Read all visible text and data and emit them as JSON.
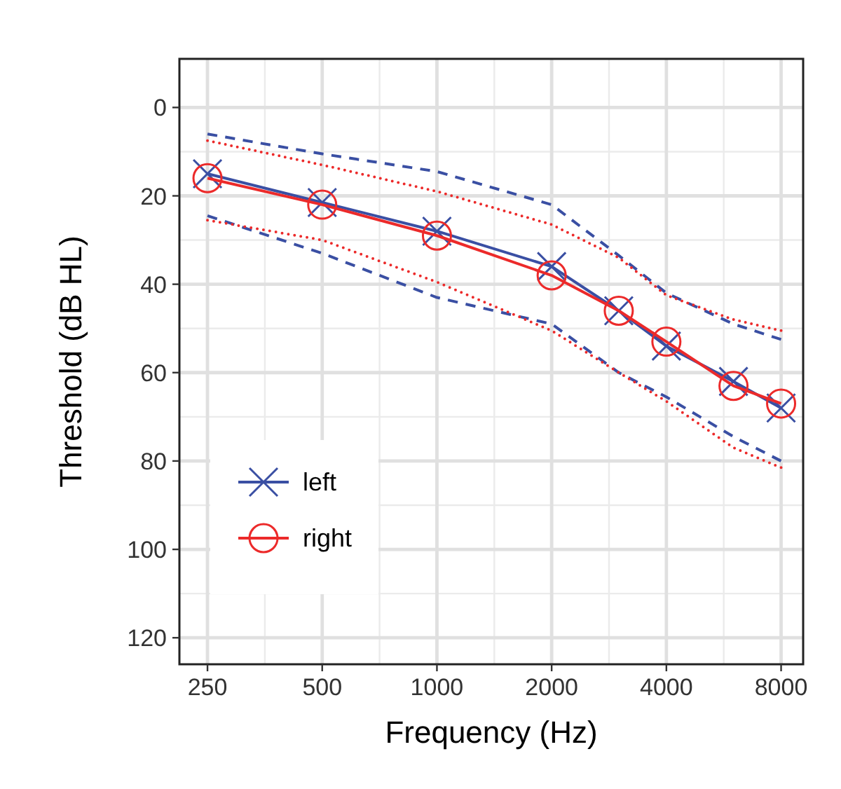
{
  "chart_data": {
    "type": "line",
    "xlabel": "Frequency (Hz)",
    "ylabel": "Threshold (dB HL)",
    "log": "x",
    "x": [
      250,
      500,
      1000,
      2000,
      3000,
      4000,
      6000,
      8000
    ],
    "xlim": [
      211,
      9140
    ],
    "xticks": [
      250,
      500,
      1000,
      2000,
      4000,
      8000
    ],
    "ylim": [
      126,
      -11
    ],
    "yticks": [
      0,
      20,
      40,
      60,
      80,
      100,
      120
    ],
    "grid": true,
    "legend": "bottom left",
    "series": [
      {
        "name": "left",
        "color": "#3a4fa3",
        "marker": "cross",
        "line_style": "solid",
        "values": [
          15,
          21.5,
          28,
          36,
          46,
          54,
          62,
          68
        ]
      },
      {
        "name": "right",
        "color": "#ec2a2a",
        "marker": "circle",
        "line_style": "solid",
        "values": [
          16,
          22,
          29,
          38,
          46,
          53,
          63,
          67
        ]
      },
      {
        "color": "#3a4fa3",
        "marker": "none",
        "line_style": "dashed",
        "values": [
          6,
          10.5,
          14.5,
          22,
          33.5,
          42,
          49,
          52.5
        ]
      },
      {
        "color": "#3a4fa3",
        "marker": "none",
        "line_style": "dashed",
        "values": [
          24.5,
          33,
          43,
          49,
          60,
          65.5,
          74.5,
          80
        ]
      },
      {
        "color": "#ec2a2a",
        "marker": "none",
        "line_style": "dotted",
        "values": [
          7.5,
          13,
          19,
          26.5,
          34,
          42.5,
          48,
          50.5
        ]
      },
      {
        "color": "#ec2a2a",
        "marker": "none",
        "line_style": "dotted",
        "values": [
          25.5,
          30,
          39.5,
          50.5,
          60,
          66.5,
          77,
          81.5
        ]
      }
    ]
  }
}
